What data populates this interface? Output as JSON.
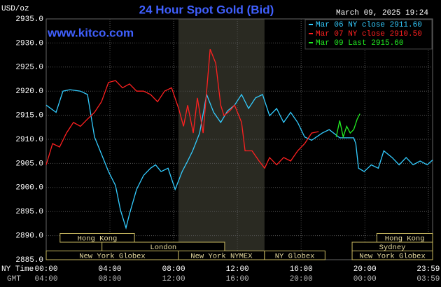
{
  "chart_data": {
    "type": "line",
    "title": "24 Hour Spot Gold (Bid)",
    "timestamp": "March 09, 2025 19:24",
    "watermark": "www.kitco.com",
    "y_label": "USD/oz",
    "x_label": "NY Time",
    "x2_label": "GMT",
    "grid": true,
    "legend": "top-right",
    "xlim": [
      0,
      24.25
    ],
    "ylim": [
      2885,
      2935
    ],
    "yticks": [
      {
        "value": 2885,
        "label": "2885.0"
      },
      {
        "value": 2890,
        "label": "2890.0"
      },
      {
        "value": 2895,
        "label": "2895.0"
      },
      {
        "value": 2900,
        "label": "2900.0"
      },
      {
        "value": 2905,
        "label": "2905.0"
      },
      {
        "value": 2910,
        "label": "2910.0"
      },
      {
        "value": 2915,
        "label": "2915.0"
      },
      {
        "value": 2920,
        "label": "2920.0"
      },
      {
        "value": 2925,
        "label": "2925.0"
      },
      {
        "value": 2930,
        "label": "2930.0"
      },
      {
        "value": 2935,
        "label": "2935.0"
      }
    ],
    "xticks": [
      {
        "value": 0,
        "label": "00:00"
      },
      {
        "value": 4,
        "label": "04:00"
      },
      {
        "value": 8,
        "label": "08:00"
      },
      {
        "value": 12,
        "label": "12:00"
      },
      {
        "value": 16,
        "label": "16:00"
      },
      {
        "value": 20,
        "label": "20:00"
      },
      {
        "value": 23.983,
        "label": "23:59"
      }
    ],
    "x2ticks": [
      {
        "value": 0,
        "label": "04:00"
      },
      {
        "value": 4,
        "label": "08:00"
      },
      {
        "value": 8,
        "label": "12:00"
      },
      {
        "value": 12,
        "label": "16:00"
      },
      {
        "value": 16,
        "label": "20:00"
      },
      {
        "value": 20,
        "label": "00:00"
      },
      {
        "value": 23.983,
        "label": "03:59"
      }
    ],
    "session_rows": [
      [
        {
          "label": "Hong Kong",
          "start": 0.87,
          "end": 5.54
        },
        {
          "label": "Hong Kong",
          "start": 20.75,
          "end": 24.25
        }
      ],
      [
        {
          "label": "London",
          "start": 3.5,
          "end": 11.2
        },
        {
          "label": "Sydney",
          "start": 19.2,
          "end": 24.25
        }
      ],
      [
        {
          "label": "New York Globex",
          "start": 0,
          "end": 8.3
        },
        {
          "label": "New York NYMEX",
          "start": 8.3,
          "end": 13.7,
          "shaded": true
        },
        {
          "label": "NY Globex",
          "start": 13.7,
          "end": 17.5
        },
        {
          "label": "New York Globex",
          "start": 19.2,
          "end": 24.25
        }
      ]
    ],
    "series": [
      {
        "name": "Mar 06 NY close 2911.60",
        "color": "#33ccff",
        "x": [
          0,
          0.62,
          1.05,
          1.49,
          2.15,
          2.59,
          3.03,
          3.47,
          3.91,
          4.35,
          4.66,
          5.01,
          5.23,
          5.67,
          6.11,
          6.55,
          6.86,
          7.21,
          7.65,
          8.09,
          8.53,
          8.88,
          9.19,
          9.63,
          10.07,
          10.51,
          10.95,
          11.38,
          11.82,
          12.26,
          12.7,
          13.14,
          13.58,
          14.02,
          14.46,
          14.9,
          15.34,
          15.78,
          16.22,
          16.66,
          17.32,
          17.76,
          18.42,
          19.3,
          19.43,
          19.6,
          19.96,
          20.4,
          20.84,
          21.19,
          21.71,
          22.15,
          22.59,
          23.03,
          23.47,
          23.91,
          24.25
        ],
        "values": [
          2917.1,
          2915.6,
          2920.0,
          2920.3,
          2920.0,
          2919.3,
          2910.5,
          2906.9,
          2903.3,
          2900.4,
          2895.3,
          2891.6,
          2894.5,
          2899.6,
          2902.5,
          2904.0,
          2904.7,
          2903.3,
          2904.0,
          2899.6,
          2903.3,
          2905.5,
          2907.6,
          2911.3,
          2919.3,
          2915.6,
          2913.5,
          2915.9,
          2917.1,
          2919.3,
          2916.4,
          2918.6,
          2919.3,
          2914.9,
          2916.4,
          2913.5,
          2915.6,
          2913.5,
          2910.5,
          2909.8,
          2911.3,
          2912.0,
          2910.3,
          2910.3,
          2909.1,
          2904.0,
          2903.3,
          2904.7,
          2904.0,
          2907.6,
          2906.2,
          2904.7,
          2906.2,
          2904.7,
          2905.5,
          2904.7,
          2905.7
        ]
      },
      {
        "name": "Mar 07 NY close 2910.50",
        "color": "#ff2020",
        "x": [
          0,
          0.4,
          0.84,
          1.27,
          1.71,
          2.15,
          2.59,
          3.03,
          3.47,
          3.91,
          4.35,
          4.79,
          5.23,
          5.67,
          6.11,
          6.55,
          6.99,
          7.43,
          7.87,
          8.31,
          8.62,
          8.88,
          9.23,
          9.49,
          9.85,
          10.29,
          10.64,
          10.95,
          11.16,
          11.52,
          11.82,
          12.26,
          12.48,
          12.92,
          13.36,
          13.71,
          14.02,
          14.46,
          14.9,
          15.34,
          15.78,
          16.22,
          16.66,
          17.1
        ],
        "values": [
          2904.7,
          2909.1,
          2908.4,
          2911.3,
          2913.5,
          2912.7,
          2914.2,
          2915.6,
          2917.8,
          2921.8,
          2922.2,
          2920.7,
          2921.5,
          2920.0,
          2920.0,
          2919.3,
          2917.8,
          2920.0,
          2920.7,
          2916.4,
          2912.7,
          2917.1,
          2911.3,
          2918.6,
          2911.3,
          2928.7,
          2925.8,
          2917.1,
          2914.9,
          2915.9,
          2917.1,
          2913.5,
          2907.6,
          2907.6,
          2905.5,
          2904.0,
          2906.2,
          2904.7,
          2906.2,
          2905.5,
          2907.6,
          2909.1,
          2911.3,
          2911.6
        ]
      },
      {
        "name": "Mar 09 Last 2915.60",
        "color": "#22ee22",
        "x": [
          18.2,
          18.42,
          18.64,
          18.86,
          19.08,
          19.3,
          19.52,
          19.69
        ],
        "values": [
          2910.5,
          2913.9,
          2910.5,
          2912.7,
          2911.3,
          2912.0,
          2914.2,
          2915.3
        ]
      }
    ]
  }
}
